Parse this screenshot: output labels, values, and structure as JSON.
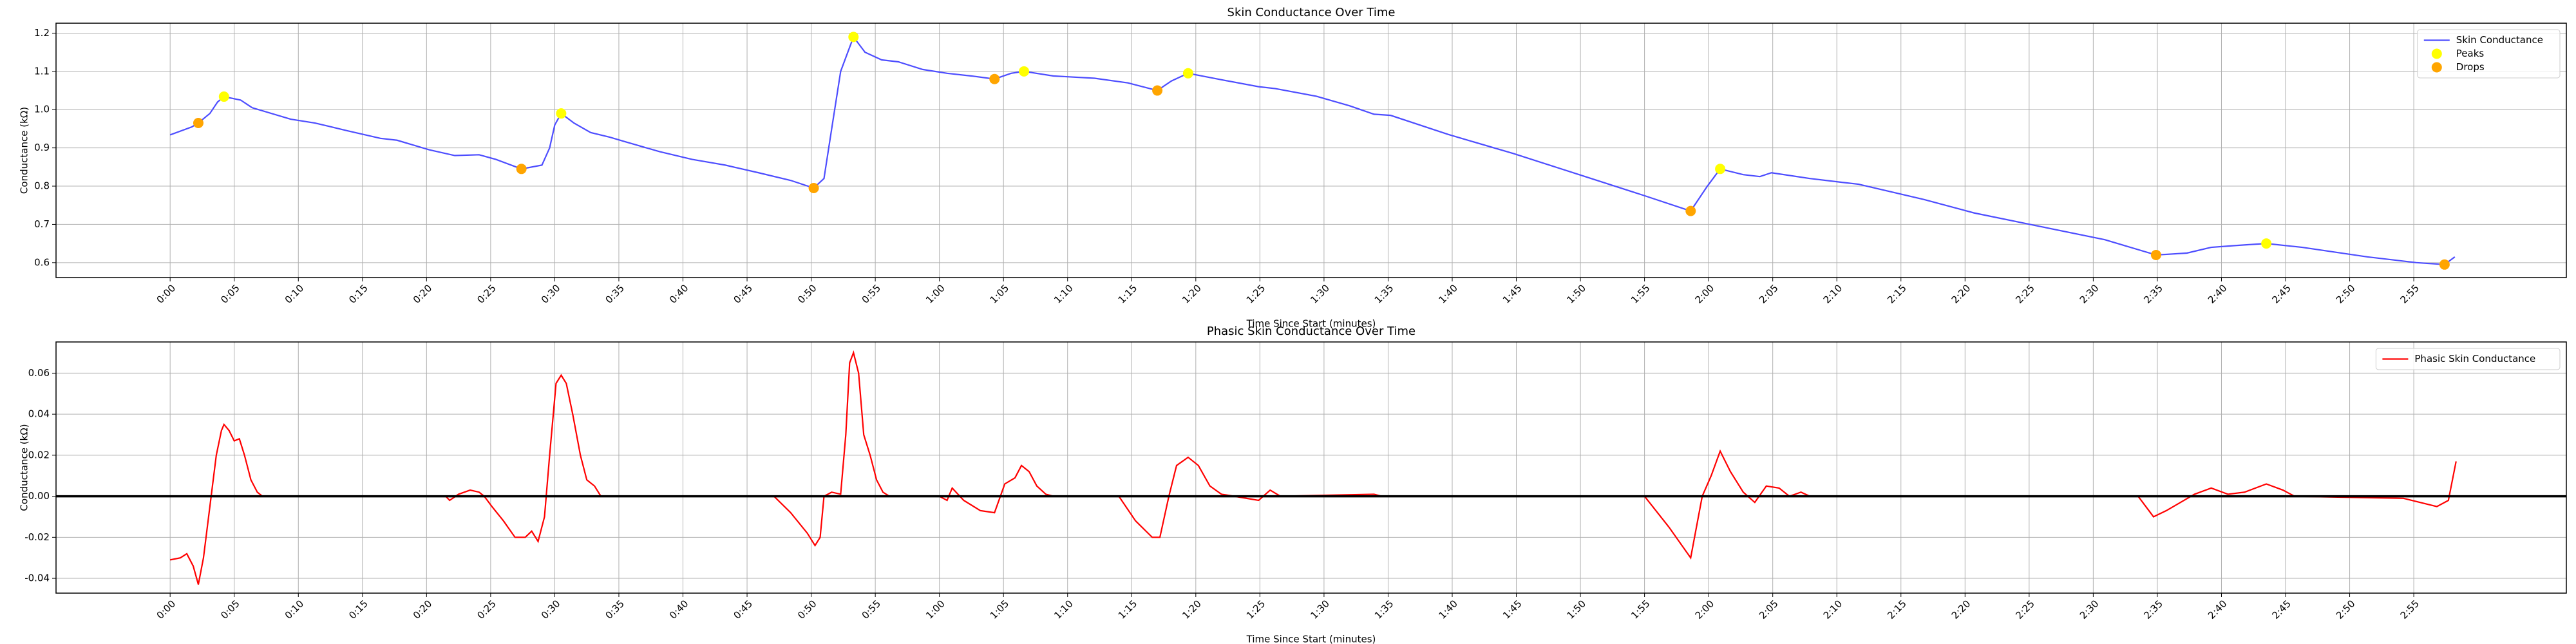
{
  "chart_data": [
    {
      "type": "line",
      "title": "Skin Conductance Over Time",
      "x_label": "Time Since Start (minutes)",
      "y_label": "Conductance (kΩ)",
      "xlim": [
        -8.9,
        186.9
      ],
      "ylim": [
        0.561,
        1.226
      ],
      "xticks": [
        {
          "value": 0,
          "label": "0:00"
        },
        {
          "value": 5,
          "label": "0:05"
        },
        {
          "value": 10,
          "label": "0:10"
        },
        {
          "value": 15,
          "label": "0:15"
        },
        {
          "value": 20,
          "label": "0:20"
        },
        {
          "value": 25,
          "label": "0:25"
        },
        {
          "value": 30,
          "label": "0:30"
        },
        {
          "value": 35,
          "label": "0:35"
        },
        {
          "value": 40,
          "label": "0:40"
        },
        {
          "value": 45,
          "label": "0:45"
        },
        {
          "value": 50,
          "label": "0:50"
        },
        {
          "value": 55,
          "label": "0:55"
        },
        {
          "value": 60,
          "label": "1:00"
        },
        {
          "value": 65,
          "label": "1:05"
        },
        {
          "value": 70,
          "label": "1:10"
        },
        {
          "value": 75,
          "label": "1:15"
        },
        {
          "value": 80,
          "label": "1:20"
        },
        {
          "value": 85,
          "label": "1:25"
        },
        {
          "value": 90,
          "label": "1:30"
        },
        {
          "value": 95,
          "label": "1:35"
        },
        {
          "value": 100,
          "label": "1:40"
        },
        {
          "value": 105,
          "label": "1:45"
        },
        {
          "value": 110,
          "label": "1:50"
        },
        {
          "value": 115,
          "label": "1:55"
        },
        {
          "value": 120,
          "label": "2:00"
        },
        {
          "value": 125,
          "label": "2:05"
        },
        {
          "value": 130,
          "label": "2:10"
        },
        {
          "value": 135,
          "label": "2:15"
        },
        {
          "value": 140,
          "label": "2:20"
        },
        {
          "value": 145,
          "label": "2:25"
        },
        {
          "value": 150,
          "label": "2:30"
        },
        {
          "value": 155,
          "label": "2:35"
        },
        {
          "value": 160,
          "label": "2:40"
        },
        {
          "value": 165,
          "label": "2:45"
        },
        {
          "value": 170,
          "label": "2:50"
        },
        {
          "value": 175,
          "label": "2:55"
        }
      ],
      "yticks": [
        0.6,
        0.7,
        0.8,
        0.9,
        {
          "value": 1,
          "label": "1.0"
        },
        1.1,
        1.2
      ],
      "grid": true,
      "legend": "upper right",
      "series": [
        {
          "name": "Skin Conductance",
          "style": "line",
          "color": "#4d4dff",
          "x": [
            0,
            1.7,
            2.2,
            3.1,
            3.7,
            4.2,
            5.5,
            6.4,
            9.4,
            11.3,
            13.8,
            16.4,
            17.7,
            20.2,
            22.2,
            24.1,
            25.4,
            27.4,
            29,
            29.6,
            30,
            30.5,
            31.5,
            32.8,
            34.3,
            35.6,
            38.2,
            40.7,
            43.3,
            45.9,
            48.4,
            50.2,
            51,
            51.6,
            52.3,
            53.3,
            54.2,
            55.5,
            56.8,
            58.7,
            60.6,
            62.5,
            64.3,
            65.6,
            66.6,
            68.9,
            72.1,
            74.7,
            77,
            78.1,
            79.4,
            81.7,
            84.9,
            86.2,
            89.4,
            92,
            93.9,
            95.2,
            99.7,
            104.8,
            109.9,
            115,
            118.6,
            119.9,
            120.9,
            122.7,
            124,
            124.9,
            127.9,
            130.4,
            131.7,
            136.8,
            140.7,
            145.8,
            150.9,
            154.9,
            157.3,
            159.2,
            161.2,
            163.5,
            166.3,
            171.4,
            175.2,
            177.4,
            178.2
          ],
          "values": [
            0.934,
            0.955,
            0.965,
            0.99,
            1.02,
            1.034,
            1.025,
            1.005,
            0.975,
            0.965,
            0.945,
            0.925,
            0.92,
            0.895,
            0.88,
            0.882,
            0.87,
            0.845,
            0.855,
            0.9,
            0.96,
            0.99,
            0.965,
            0.94,
            0.928,
            0.915,
            0.89,
            0.87,
            0.855,
            0.835,
            0.815,
            0.795,
            0.82,
            0.95,
            1.1,
            1.19,
            1.15,
            1.13,
            1.125,
            1.105,
            1.095,
            1.088,
            1.08,
            1.095,
            1.1,
            1.088,
            1.082,
            1.07,
            1.05,
            1.075,
            1.095,
            1.08,
            1.06,
            1.055,
            1.035,
            1.01,
            0.988,
            0.985,
            0.935,
            0.885,
            0.83,
            0.775,
            0.735,
            0.8,
            0.845,
            0.83,
            0.825,
            0.835,
            0.82,
            0.81,
            0.805,
            0.765,
            0.73,
            0.695,
            0.66,
            0.62,
            0.625,
            0.64,
            0.645,
            0.65,
            0.64,
            0.615,
            0.6,
            0.595,
            0.615
          ]
        },
        {
          "name": "Peaks",
          "style": "points",
          "color": "#ffff00",
          "x": [
            4.2,
            30.5,
            53.3,
            66.6,
            79.4,
            120.9,
            163.5
          ],
          "values": [
            1.034,
            0.99,
            1.19,
            1.1,
            1.095,
            0.845,
            0.65
          ]
        },
        {
          "name": "Drops",
          "style": "points",
          "color": "#ffa500",
          "x": [
            2.2,
            27.4,
            50.2,
            64.3,
            77,
            118.6,
            154.9,
            177.4
          ],
          "values": [
            0.965,
            0.845,
            0.795,
            1.08,
            1.05,
            0.735,
            0.62,
            0.595
          ]
        }
      ]
    },
    {
      "type": "line",
      "title": "Phasic Skin Conductance Over Time",
      "x_label": "Time Since Start (minutes)",
      "y_label": "Conductance (kΩ)",
      "xlim": [
        -8.9,
        186.9
      ],
      "ylim": [
        -0.0472,
        0.0752
      ],
      "xticks": [
        {
          "value": 0,
          "label": "0:00"
        },
        {
          "value": 5,
          "label": "0:05"
        },
        {
          "value": 10,
          "label": "0:10"
        },
        {
          "value": 15,
          "label": "0:15"
        },
        {
          "value": 20,
          "label": "0:20"
        },
        {
          "value": 25,
          "label": "0:25"
        },
        {
          "value": 30,
          "label": "0:30"
        },
        {
          "value": 35,
          "label": "0:35"
        },
        {
          "value": 40,
          "label": "0:40"
        },
        {
          "value": 45,
          "label": "0:45"
        },
        {
          "value": 50,
          "label": "0:50"
        },
        {
          "value": 55,
          "label": "0:55"
        },
        {
          "value": 60,
          "label": "1:00"
        },
        {
          "value": 65,
          "label": "1:05"
        },
        {
          "value": 70,
          "label": "1:10"
        },
        {
          "value": 75,
          "label": "1:15"
        },
        {
          "value": 80,
          "label": "1:20"
        },
        {
          "value": 85,
          "label": "1:25"
        },
        {
          "value": 90,
          "label": "1:30"
        },
        {
          "value": 95,
          "label": "1:35"
        },
        {
          "value": 100,
          "label": "1:40"
        },
        {
          "value": 105,
          "label": "1:45"
        },
        {
          "value": 110,
          "label": "1:50"
        },
        {
          "value": 115,
          "label": "1:55"
        },
        {
          "value": 120,
          "label": "2:00"
        },
        {
          "value": 125,
          "label": "2:05"
        },
        {
          "value": 130,
          "label": "2:10"
        },
        {
          "value": 135,
          "label": "2:15"
        },
        {
          "value": 140,
          "label": "2:20"
        },
        {
          "value": 145,
          "label": "2:25"
        },
        {
          "value": 150,
          "label": "2:30"
        },
        {
          "value": 155,
          "label": "2:35"
        },
        {
          "value": 160,
          "label": "2:40"
        },
        {
          "value": 165,
          "label": "2:45"
        },
        {
          "value": 170,
          "label": "2:50"
        },
        {
          "value": 175,
          "label": "2:55"
        }
      ],
      "yticks": [
        -0.04,
        -0.02,
        {
          "value": 0,
          "label": "0.00"
        },
        0.02,
        0.04,
        0.06
      ],
      "grid": true,
      "legend": "upper right",
      "hline": 0,
      "hline_color": "#000000",
      "series": [
        {
          "name": "Phasic Skin Conductance",
          "style": "line",
          "color": "#ff0000",
          "x": [
            0,
            0.8,
            1.3,
            1.8,
            2.2,
            2.6,
            3.1,
            3.6,
            4,
            4.2,
            4.6,
            5,
            5.4,
            5.8,
            6.3,
            6.8,
            7.2,
            21.5,
            21.8,
            22.5,
            23.4,
            24.1,
            24.5,
            25.1,
            26,
            26.9,
            27.7,
            28.2,
            28.7,
            29.2,
            29.6,
            30.1,
            30.5,
            30.9,
            31.4,
            32,
            32.5,
            33.1,
            33.6,
            47.1,
            48.4,
            49.7,
            50.3,
            50.7,
            51,
            51.6,
            52.3,
            52.7,
            53,
            53.3,
            53.7,
            54.1,
            54.6,
            55.1,
            55.6,
            56.1,
            60,
            60.6,
            61,
            61.9,
            63.2,
            64.3,
            65.1,
            65.9,
            66.4,
            67,
            67.6,
            68.3,
            68.9,
            74,
            75.3,
            76.6,
            77.2,
            77.9,
            78.5,
            79.4,
            80.2,
            81.1,
            82,
            83,
            84.9,
            85.8,
            86.6,
            93.9,
            94.5,
            115,
            116.9,
            118.6,
            119.5,
            120.2,
            120.9,
            121.7,
            122.7,
            123.6,
            124.5,
            125.5,
            126.3,
            127.2,
            127.9,
            153.5,
            154.7,
            155.7,
            156.8,
            157.9,
            159.2,
            160.5,
            161.8,
            163.5,
            164.8,
            165.7,
            174.2,
            176.8,
            177.7,
            178.3
          ],
          "values": [
            -0.031,
            -0.03,
            -0.028,
            -0.034,
            -0.043,
            -0.03,
            -0.005,
            0.02,
            0.032,
            0.035,
            0.032,
            0.027,
            0.028,
            0.02,
            0.008,
            0.002,
            0,
            0,
            -0.002,
            0.001,
            0.003,
            0.002,
            0,
            -0.005,
            -0.012,
            -0.02,
            -0.02,
            -0.017,
            -0.022,
            -0.01,
            0.02,
            0.055,
            0.059,
            0.055,
            0.04,
            0.02,
            0.008,
            0.005,
            0,
            0,
            -0.008,
            -0.018,
            -0.024,
            -0.02,
            0,
            0.002,
            0.001,
            0.03,
            0.065,
            0.07,
            0.06,
            0.03,
            0.02,
            0.008,
            0.002,
            0,
            0,
            -0.002,
            0.004,
            -0.002,
            -0.007,
            -0.008,
            0.006,
            0.009,
            0.015,
            0.012,
            0.005,
            0.001,
            0,
            0,
            -0.012,
            -0.02,
            -0.02,
            0,
            0.015,
            0.019,
            0.015,
            0.005,
            0.001,
            0,
            -0.002,
            0.003,
            0,
            0.001,
            0,
            0,
            -0.015,
            -0.03,
            0,
            0.01,
            0.022,
            0.012,
            0.002,
            -0.003,
            0.005,
            0.004,
            0,
            0.002,
            0,
            0,
            -0.01,
            -0.007,
            -0.003,
            0.001,
            0.004,
            0.001,
            0.002,
            0.006,
            0.003,
            0,
            -0.001,
            -0.005,
            -0.002,
            0.017
          ]
        }
      ]
    }
  ]
}
